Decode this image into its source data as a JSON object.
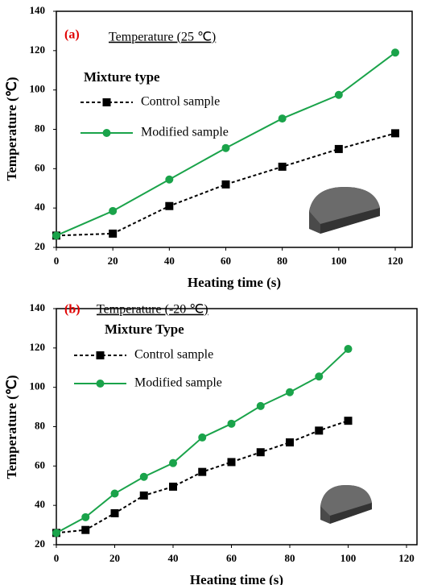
{
  "chart_data": [
    {
      "type": "line",
      "panel_label": "(a)",
      "annotation": "Temperature (25 ℃)",
      "x_label": "Heating time (s)",
      "y_label": "Temperature (℃)",
      "legend_title": "Mixture type",
      "x": [
        0,
        20,
        40,
        60,
        80,
        100,
        120
      ],
      "series": [
        {
          "name": "Control sample",
          "color": "#000000",
          "dash": true,
          "marker": "square",
          "values": [
            26,
            27,
            41,
            52,
            61,
            70,
            78
          ]
        },
        {
          "name": "Modified sample",
          "color": "#1aa34a",
          "dash": false,
          "marker": "circle",
          "values": [
            26,
            38.5,
            54.5,
            70.5,
            85.5,
            97.5,
            119
          ]
        }
      ],
      "xlim": [
        0,
        120
      ],
      "xticks": [
        0,
        20,
        40,
        60,
        80,
        100,
        120
      ],
      "ylim": [
        20,
        140
      ],
      "yticks": [
        20,
        40,
        60,
        80,
        100,
        120,
        140
      ]
    },
    {
      "type": "line",
      "panel_label": "(b)",
      "annotation": "Temperature (-20 ℃)",
      "x_label": "Heating time (s)",
      "y_label": "Temperature (℃)",
      "legend_title": "Mixture Type",
      "x": [
        0,
        10,
        20,
        30,
        40,
        50,
        60,
        70,
        80,
        90,
        100
      ],
      "series": [
        {
          "name": "Control sample",
          "color": "#000000",
          "dash": true,
          "marker": "square",
          "values": [
            26,
            27.5,
            36,
            45,
            49.5,
            57,
            62,
            67,
            72,
            78,
            83
          ]
        },
        {
          "name": "Modified sample",
          "color": "#1aa34a",
          "dash": false,
          "marker": "circle",
          "values": [
            26,
            34,
            46,
            54.5,
            61.5,
            74.5,
            81.5,
            90.5,
            97.5,
            105.5,
            119.5
          ]
        }
      ],
      "xlim": [
        0,
        120
      ],
      "xticks": [
        0,
        20,
        40,
        60,
        80,
        100,
        120
      ],
      "ylim": [
        20,
        140
      ],
      "yticks": [
        20,
        40,
        60,
        80,
        100,
        120,
        140
      ]
    }
  ]
}
